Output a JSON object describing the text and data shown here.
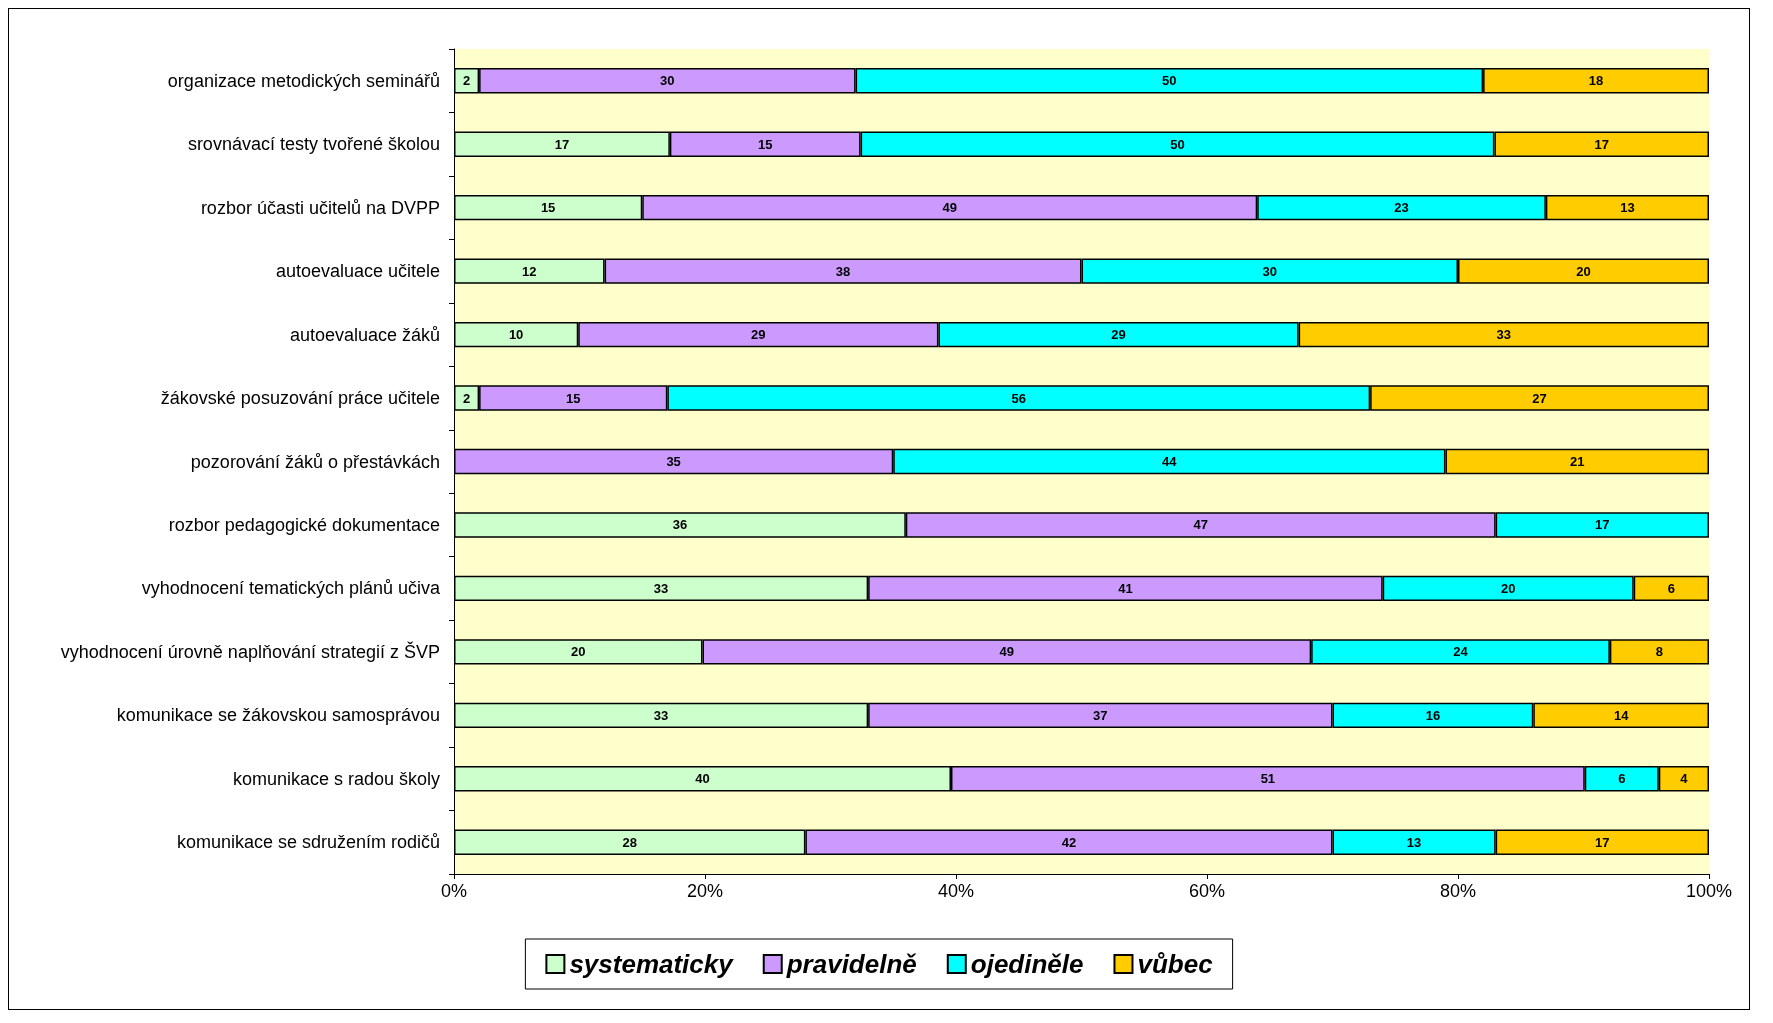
{
  "chart_data": {
    "type": "bar",
    "orientation": "horizontal",
    "stacked": true,
    "legend": "bottom",
    "grid": false,
    "categories": [
      "organizace metodických seminářů",
      "srovnávací testy tvořené školou",
      "rozbor účasti učitelů na DVPP",
      "autoevaluace učitele",
      "autoevaluace žáků",
      "žákovské posuzování práce učitele",
      "pozorování žáků o přestávkách",
      "rozbor pedagogické dokumentace",
      "vyhodnocení tematických plánů učiva",
      "vyhodnocení úrovně naplňování strategií z ŠVP",
      "komunikace se žákovskou samosprávou",
      "komunikace s radou školy",
      "komunikace se sdružením rodičů"
    ],
    "xlim": [
      0,
      100
    ],
    "xticks": [
      {
        "value": 0,
        "label": "0%"
      },
      {
        "value": 20,
        "label": "20%"
      },
      {
        "value": 40,
        "label": "40%"
      },
      {
        "value": 60,
        "label": "60%"
      },
      {
        "value": 80,
        "label": "80%"
      },
      {
        "value": 100,
        "label": "100%"
      }
    ],
    "series": [
      {
        "name": "systematicky",
        "color": "#ccffcc",
        "values": [
          2,
          17.2,
          15,
          12,
          9.9,
          2,
          null,
          36,
          33,
          19.8,
          33,
          39.6,
          28
        ],
        "value_labels": [
          "2",
          "17",
          "15",
          "12",
          "10",
          "2",
          null,
          "36",
          "33",
          "20",
          "33",
          "40",
          "28"
        ]
      },
      {
        "name": "pravidelně",
        "color": "#cc99ff",
        "values": [
          30,
          15.2,
          49,
          38,
          28.7,
          15,
          35,
          47,
          41,
          48.5,
          37,
          50.5,
          42
        ],
        "value_labels": [
          "30",
          "15",
          "49",
          "38",
          "29",
          "15",
          "35",
          "47",
          "41",
          "49",
          "37",
          "51",
          "42"
        ]
      },
      {
        "name": "ojediněle",
        "color": "#00ffff",
        "values": [
          50,
          50.5,
          23,
          30,
          28.7,
          56,
          44,
          17,
          20,
          23.8,
          16,
          5.9,
          13
        ],
        "value_labels": [
          "50",
          "50",
          "23",
          "30",
          "29",
          "56",
          "44",
          "17",
          "20",
          "24",
          "16",
          "6",
          "13"
        ]
      },
      {
        "name": "vůbec",
        "color": "#ffcc00",
        "values": [
          18,
          17.1,
          13,
          20,
          32.7,
          27,
          21,
          null,
          6,
          7.9,
          14,
          4,
          17
        ],
        "value_labels": [
          "18",
          "17",
          "13",
          "20",
          "33",
          "27",
          "21",
          null,
          "6",
          "8",
          "14",
          "4",
          "17"
        ]
      }
    ]
  }
}
